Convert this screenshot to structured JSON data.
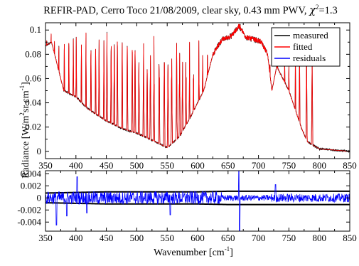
{
  "chart_data": [
    {
      "type": "line",
      "panel": "spectrum",
      "title_parts": {
        "main": "REFIR-PAD, Cerro Toco 21/08/2009, clear sky, 0.43 mm PWV, ",
        "chi": "χ",
        "sup": "2",
        "tail": "=1.3"
      },
      "ylabel_parts": {
        "pre": "Radiance [W/m",
        "sup1": "2",
        "mid": "sr cm",
        "sup2": "-1",
        "post": "]"
      },
      "xlim": [
        350,
        850
      ],
      "ylim": [
        -0.006,
        0.106
      ],
      "x_ticks": [
        "350",
        "400",
        "450",
        "500",
        "550",
        "600",
        "650",
        "700",
        "750",
        "800",
        "850"
      ],
      "x_tick_values": [
        350,
        400,
        450,
        500,
        550,
        600,
        650,
        700,
        750,
        800,
        850
      ],
      "y_ticks": [
        "0",
        "0.02",
        "0.04",
        "0.06",
        "0.08",
        "0.1"
      ],
      "y_tick_values": [
        0,
        0.02,
        0.04,
        0.06,
        0.08,
        0.1
      ],
      "legend_position": "top-right",
      "series": [
        {
          "name": "measured",
          "color": "#000000"
        },
        {
          "name": "fitted",
          "color": "#ff0000"
        },
        {
          "name": "residuals",
          "color": "#0000ff"
        }
      ],
      "envelope_points": [
        {
          "x": 350,
          "y": 0.087
        },
        {
          "x": 360,
          "y": 0.09
        },
        {
          "x": 370,
          "y": 0.07
        },
        {
          "x": 380,
          "y": 0.05
        },
        {
          "x": 400,
          "y": 0.045
        },
        {
          "x": 420,
          "y": 0.035
        },
        {
          "x": 450,
          "y": 0.025
        },
        {
          "x": 480,
          "y": 0.018
        },
        {
          "x": 500,
          "y": 0.015
        },
        {
          "x": 530,
          "y": 0.008
        },
        {
          "x": 550,
          "y": 0.003
        },
        {
          "x": 570,
          "y": 0.012
        },
        {
          "x": 590,
          "y": 0.03
        },
        {
          "x": 610,
          "y": 0.05
        },
        {
          "x": 625,
          "y": 0.08
        },
        {
          "x": 640,
          "y": 0.092
        },
        {
          "x": 655,
          "y": 0.095
        },
        {
          "x": 668,
          "y": 0.103
        },
        {
          "x": 680,
          "y": 0.094
        },
        {
          "x": 695,
          "y": 0.092
        },
        {
          "x": 705,
          "y": 0.09
        },
        {
          "x": 715,
          "y": 0.08
        },
        {
          "x": 722,
          "y": 0.05
        },
        {
          "x": 730,
          "y": 0.07
        },
        {
          "x": 740,
          "y": 0.06
        },
        {
          "x": 750,
          "y": 0.05
        },
        {
          "x": 760,
          "y": 0.035
        },
        {
          "x": 770,
          "y": 0.02
        },
        {
          "x": 780,
          "y": 0.008
        },
        {
          "x": 800,
          "y": 0.002
        },
        {
          "x": 850,
          "y": 0.0
        }
      ]
    },
    {
      "type": "line",
      "panel": "residuals",
      "xlabel_parts": {
        "pre": "Wavenumber [cm",
        "sup": "-1",
        "post": "]"
      },
      "xlim": [
        350,
        850
      ],
      "ylim": [
        -0.0055,
        0.0045
      ],
      "x_ticks": [
        "350",
        "400",
        "450",
        "500",
        "550",
        "600",
        "650",
        "700",
        "750",
        "800",
        "850"
      ],
      "x_tick_values": [
        350,
        400,
        450,
        500,
        550,
        600,
        650,
        700,
        750,
        800,
        850
      ],
      "y_ticks": [
        "0.004",
        "0.002",
        "0",
        "-0.002",
        "-0.004"
      ],
      "y_tick_values": [
        0.004,
        0.002,
        0,
        -0.002,
        -0.004
      ],
      "noise_envelope": [
        {
          "x": 350,
          "y": 0.0008
        },
        {
          "x": 400,
          "y": 0.0009
        },
        {
          "x": 450,
          "y": 0.001
        },
        {
          "x": 500,
          "y": 0.001
        },
        {
          "x": 550,
          "y": 0.001
        },
        {
          "x": 600,
          "y": 0.001
        },
        {
          "x": 650,
          "y": 0.0011
        },
        {
          "x": 700,
          "y": 0.0011
        },
        {
          "x": 750,
          "y": 0.0011
        },
        {
          "x": 800,
          "y": 0.0011
        },
        {
          "x": 850,
          "y": 0.0011
        }
      ],
      "spikes": [
        {
          "x": 368,
          "y": -0.0045
        },
        {
          "x": 385,
          "y": -0.003
        },
        {
          "x": 402,
          "y": 0.0035
        },
        {
          "x": 418,
          "y": -0.0025
        },
        {
          "x": 555,
          "y": -0.0028
        },
        {
          "x": 668,
          "y": 0.0045
        },
        {
          "x": 669,
          "y": -0.0055
        },
        {
          "x": 728,
          "y": 0.0022
        }
      ]
    }
  ]
}
